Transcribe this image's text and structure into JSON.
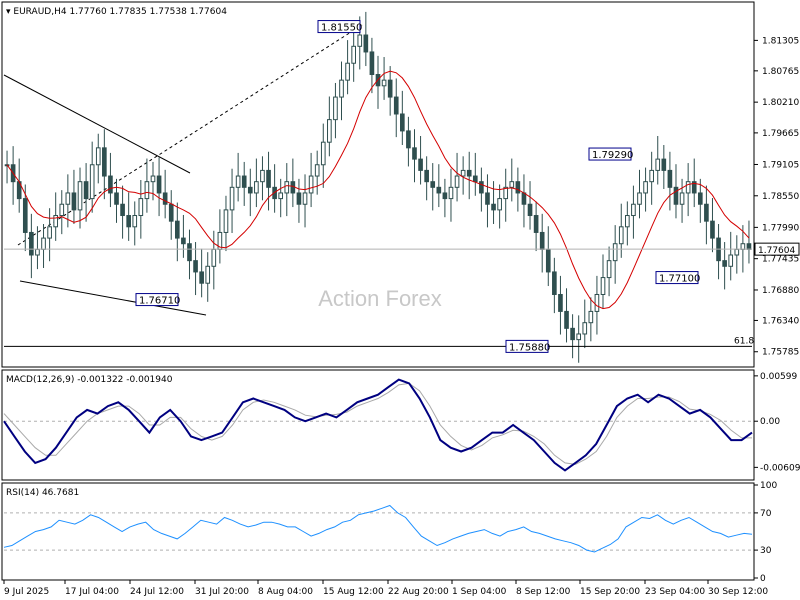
{
  "header": {
    "symbol": "EURAUD,H4",
    "ohlc": "1.77760 1.77835 1.77538 1.77604"
  },
  "watermark": "Action Forex",
  "chart_data": [
    {
      "type": "candlestick",
      "title": "EURAUD,H4",
      "ylim": [
        1.7555,
        1.8195
      ],
      "y_ticks": [
        "1.81305",
        "1.80765",
        "1.80210",
        "1.79665",
        "1.79105",
        "1.78550",
        "1.77990",
        "1.77435",
        "1.76880",
        "1.76340",
        "1.75785"
      ],
      "y_tick_values": [
        1.81305,
        1.80765,
        1.8021,
        1.79665,
        1.79105,
        1.7855,
        1.7799,
        1.77435,
        1.7688,
        1.7634,
        1.75785
      ],
      "x_ticks": [
        "9 Jul 2025",
        "17 Jul 04:00",
        "24 Jul 12:00",
        "31 Jul 20:00",
        "8 Aug 04:00",
        "15 Aug 12:00",
        "22 Aug 20:00",
        "1 Sep 04:00",
        "8 Sep 12:00",
        "15 Sep 20:00",
        "23 Sep 04:00",
        "30 Sep 12:00"
      ],
      "current_price": 1.77604,
      "current_price_label": "1.77604",
      "price_labels": [
        {
          "text": "1.81550",
          "value": 1.8155
        },
        {
          "text": "1.79290",
          "value": 1.7929
        },
        {
          "text": "1.77100",
          "value": 1.771
        },
        {
          "text": "1.76710",
          "value": 1.7671
        },
        {
          "text": "1.75880",
          "value": 1.7588
        }
      ],
      "fib_label": "61.8",
      "fib_value": 1.7588,
      "moving_average": {
        "color": "#d40000"
      },
      "candle_color": "#2f4f4f",
      "close_path": [
        1.791,
        1.788,
        1.785,
        1.779,
        1.775,
        1.776,
        1.778,
        1.78,
        1.782,
        1.784,
        1.786,
        1.783,
        1.788,
        1.785,
        1.791,
        1.794,
        1.789,
        1.786,
        1.784,
        1.782,
        1.78,
        1.782,
        1.785,
        1.788,
        1.789,
        1.786,
        1.784,
        1.781,
        1.778,
        1.777,
        1.774,
        1.772,
        1.77,
        1.773,
        1.776,
        1.779,
        1.783,
        1.787,
        1.789,
        1.787,
        1.786,
        1.788,
        1.79,
        1.787,
        1.785,
        1.786,
        1.788,
        1.786,
        1.784,
        1.786,
        1.789,
        1.791,
        1.795,
        1.799,
        1.803,
        1.806,
        1.809,
        1.812,
        1.814,
        1.811,
        1.807,
        1.805,
        1.806,
        1.803,
        1.8,
        1.797,
        1.794,
        1.792,
        1.79,
        1.788,
        1.787,
        1.786,
        1.785,
        1.787,
        1.789,
        1.79,
        1.789,
        1.788,
        1.786,
        1.784,
        1.783,
        1.785,
        1.787,
        1.788,
        1.786,
        1.784,
        1.782,
        1.779,
        1.776,
        1.772,
        1.768,
        1.765,
        1.762,
        1.76,
        1.761,
        1.763,
        1.765,
        1.768,
        1.771,
        1.774,
        1.777,
        1.78,
        1.782,
        1.784,
        1.786,
        1.788,
        1.79,
        1.792,
        1.79,
        1.787,
        1.784,
        1.786,
        1.788,
        1.786,
        1.784,
        1.781,
        1.778,
        1.774,
        1.773,
        1.775,
        1.776,
        1.777,
        1.776
      ]
    },
    {
      "type": "line",
      "title": "MACD(12,26,9) -0.001322 -0.001940",
      "ylim": [
        -0.0075,
        0.0065
      ],
      "y_ticks": [
        "0.00599",
        "0.00",
        "-0.006095"
      ],
      "y_tick_values": [
        0.00599,
        0.0,
        -0.006095
      ],
      "series": [
        {
          "color": "#000080",
          "values": [
            0.0,
            -0.002,
            -0.004,
            -0.0055,
            -0.005,
            -0.0035,
            -0.0015,
            0.0005,
            0.0015,
            0.001,
            0.002,
            0.0025,
            0.0015,
            0.0,
            -0.0015,
            0.0005,
            0.0015,
            0.0,
            -0.002,
            -0.0025,
            -0.002,
            -0.0015,
            0.0005,
            0.0025,
            0.003,
            0.0025,
            0.002,
            0.0015,
            0.0005,
            0.0,
            0.0005,
            0.001,
            0.0005,
            0.0015,
            0.0025,
            0.003,
            0.0035,
            0.0045,
            0.0055,
            0.005,
            0.003,
            0.0005,
            -0.0025,
            -0.0035,
            -0.004,
            -0.0035,
            -0.0025,
            -0.0015,
            -0.0015,
            -0.0005,
            -0.0015,
            -0.0025,
            -0.004,
            -0.0055,
            -0.0065,
            -0.0055,
            -0.0045,
            -0.003,
            -0.0005,
            0.002,
            0.003,
            0.0035,
            0.0025,
            0.0035,
            0.003,
            0.002,
            0.001,
            0.0015,
            0.0005,
            -0.001,
            -0.0025,
            -0.0025,
            -0.0015
          ]
        },
        {
          "color": "#a9a9a9",
          "values": [
            0.001,
            -0.0005,
            -0.002,
            -0.0035,
            -0.0045,
            -0.0045,
            -0.003,
            -0.0015,
            0.0,
            0.001,
            0.0015,
            0.002,
            0.002,
            0.001,
            -0.0005,
            -0.0005,
            0.0005,
            0.0005,
            -0.001,
            -0.002,
            -0.0025,
            -0.002,
            -0.0005,
            0.0015,
            0.0025,
            0.0028,
            0.0025,
            0.002,
            0.0015,
            0.0008,
            0.0006,
            0.0008,
            0.0009,
            0.0012,
            0.002,
            0.0025,
            0.003,
            0.0038,
            0.0048,
            0.005,
            0.004,
            0.002,
            -0.0005,
            -0.002,
            -0.0032,
            -0.0038,
            -0.0032,
            -0.0022,
            -0.0018,
            -0.0012,
            -0.0013,
            -0.002,
            -0.003,
            -0.0045,
            -0.0055,
            -0.0057,
            -0.005,
            -0.004,
            -0.002,
            0.0005,
            0.002,
            0.003,
            0.003,
            0.0032,
            0.0032,
            0.0026,
            0.0016,
            0.0014,
            0.0009,
            0.0001,
            -0.0012,
            -0.0022,
            -0.0022
          ]
        }
      ]
    },
    {
      "type": "line",
      "title": "RSI(14) 46.7681",
      "ylim": [
        0,
        100
      ],
      "y_ticks": [
        "100",
        "70",
        "30",
        "0"
      ],
      "y_tick_values": [
        100,
        70,
        30,
        0
      ],
      "levels": [
        70,
        30
      ],
      "series": [
        {
          "color": "#1e90ff",
          "values": [
            33,
            35,
            40,
            45,
            50,
            52,
            55,
            62,
            60,
            58,
            62,
            68,
            65,
            60,
            55,
            50,
            55,
            58,
            60,
            52,
            48,
            45,
            42,
            48,
            55,
            62,
            60,
            58,
            65,
            62,
            58,
            55,
            57,
            60,
            60,
            58,
            55,
            55,
            50,
            45,
            48,
            52,
            55,
            60,
            62,
            68,
            70,
            72,
            75,
            78,
            70,
            65,
            55,
            45,
            40,
            35,
            38,
            42,
            45,
            48,
            50,
            52,
            48,
            45,
            50,
            52,
            55,
            50,
            48,
            45,
            42,
            40,
            38,
            35,
            30,
            28,
            32,
            36,
            42,
            55,
            60,
            65,
            64,
            68,
            62,
            58,
            62,
            65,
            60,
            55,
            50,
            48,
            44,
            46,
            48,
            47
          ]
        }
      ]
    }
  ]
}
